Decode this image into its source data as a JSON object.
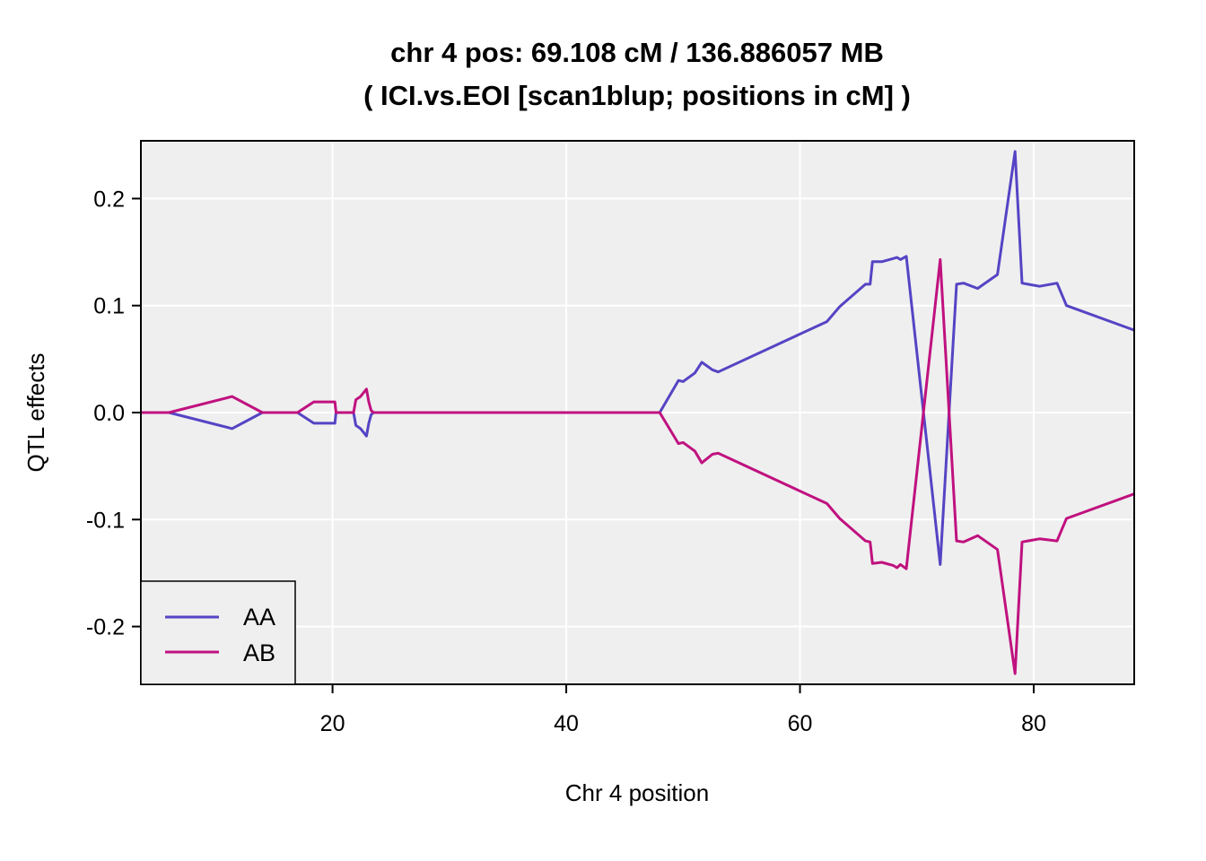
{
  "chart_data": {
    "type": "line",
    "title_line1": "chr 4 pos:  69.108 cM / 136.886057 MB",
    "title_line2": "( ICI.vs.EOI  [scan1blup; positions in cM] )",
    "xlabel": "Chr 4 position",
    "ylabel": "QTL effects",
    "xlim": [
      3.6,
      88.6
    ],
    "ylim": [
      -0.254,
      0.254
    ],
    "x_ticks": [
      20,
      40,
      60,
      80
    ],
    "y_ticks": [
      -0.2,
      -0.1,
      0.0,
      0.1,
      0.2
    ],
    "x_tick_labels": [
      "20",
      "40",
      "60",
      "80"
    ],
    "y_tick_labels": [
      "-0.2",
      "-0.1",
      "0.0",
      "0.1",
      "0.2"
    ],
    "grid": true,
    "legend_placement": "bottom-left",
    "colors": {
      "background": "#efefef",
      "grid": "#ffffff",
      "AA": "#5544c4",
      "AB": "#c0117f"
    },
    "series": [
      {
        "name": "AA",
        "color": "#5544c4",
        "points": [
          [
            3.6,
            0.0
          ],
          [
            6.0,
            0.0
          ],
          [
            11.4,
            -0.015
          ],
          [
            14.0,
            0.0
          ],
          [
            17.0,
            0.0
          ],
          [
            18.4,
            -0.01
          ],
          [
            20.2,
            -0.01
          ],
          [
            20.3,
            0.0
          ],
          [
            21.8,
            0.0
          ],
          [
            22.0,
            -0.012
          ],
          [
            22.4,
            -0.015
          ],
          [
            22.9,
            -0.022
          ],
          [
            23.1,
            -0.01
          ],
          [
            23.3,
            -0.002
          ],
          [
            23.5,
            0.0
          ],
          [
            48.0,
            0.0
          ],
          [
            49.6,
            0.03
          ],
          [
            50.0,
            0.029
          ],
          [
            51.0,
            0.037
          ],
          [
            51.6,
            0.047
          ],
          [
            52.5,
            0.04
          ],
          [
            53.0,
            0.038
          ],
          [
            62.3,
            0.085
          ],
          [
            63.4,
            0.099
          ],
          [
            65.6,
            0.12
          ],
          [
            66.0,
            0.12
          ],
          [
            66.2,
            0.141
          ],
          [
            67.0,
            0.141
          ],
          [
            68.0,
            0.144
          ],
          [
            68.3,
            0.145
          ],
          [
            68.6,
            0.143
          ],
          [
            69.1,
            0.146
          ],
          [
            72.0,
            -0.142
          ],
          [
            73.4,
            0.12
          ],
          [
            74.0,
            0.121
          ],
          [
            75.2,
            0.116
          ],
          [
            76.9,
            0.129
          ],
          [
            78.4,
            0.244
          ],
          [
            79.0,
            0.121
          ],
          [
            80.5,
            0.118
          ],
          [
            82.0,
            0.121
          ],
          [
            82.8,
            0.1
          ],
          [
            88.6,
            0.077
          ]
        ]
      },
      {
        "name": "AB",
        "color": "#c0117f",
        "points": [
          [
            3.6,
            0.0
          ],
          [
            6.0,
            0.0
          ],
          [
            11.4,
            0.015
          ],
          [
            14.0,
            0.0
          ],
          [
            17.0,
            0.0
          ],
          [
            18.4,
            0.01
          ],
          [
            20.2,
            0.01
          ],
          [
            20.3,
            0.0
          ],
          [
            21.8,
            0.0
          ],
          [
            22.0,
            0.012
          ],
          [
            22.4,
            0.015
          ],
          [
            22.9,
            0.022
          ],
          [
            23.1,
            0.01
          ],
          [
            23.3,
            0.002
          ],
          [
            23.5,
            0.0
          ],
          [
            48.0,
            0.0
          ],
          [
            49.6,
            -0.029
          ],
          [
            50.0,
            -0.028
          ],
          [
            51.0,
            -0.036
          ],
          [
            51.6,
            -0.047
          ],
          [
            52.5,
            -0.039
          ],
          [
            53.0,
            -0.038
          ],
          [
            62.3,
            -0.085
          ],
          [
            63.4,
            -0.099
          ],
          [
            65.6,
            -0.12
          ],
          [
            66.0,
            -0.121
          ],
          [
            66.2,
            -0.141
          ],
          [
            67.0,
            -0.14
          ],
          [
            68.0,
            -0.143
          ],
          [
            68.3,
            -0.145
          ],
          [
            68.6,
            -0.142
          ],
          [
            69.1,
            -0.146
          ],
          [
            72.0,
            0.143
          ],
          [
            73.4,
            -0.12
          ],
          [
            74.0,
            -0.121
          ],
          [
            75.2,
            -0.115
          ],
          [
            76.9,
            -0.128
          ],
          [
            78.4,
            -0.244
          ],
          [
            79.0,
            -0.121
          ],
          [
            80.5,
            -0.118
          ],
          [
            82.0,
            -0.12
          ],
          [
            82.8,
            -0.099
          ],
          [
            88.6,
            -0.076
          ]
        ]
      }
    ]
  }
}
